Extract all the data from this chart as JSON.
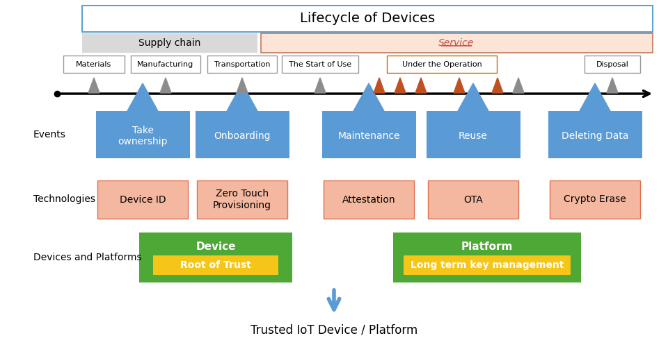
{
  "title": "Lifecycle of Devices",
  "title_box_edge": "#5ba3d0",
  "supply_chain_label": "Supply chain",
  "supply_chain_color": "#d9d9d9",
  "service_label": "Service",
  "service_color": "#fce4d6",
  "service_border_color": "#c0785a",
  "service_text_color": "#c0504d",
  "event_color": "#5b9bd5",
  "event_text_color": "#ffffff",
  "tech_color": "#f4b8a0",
  "tech_border_color": "#e07050",
  "device_color": "#4ea836",
  "device_inner_color": "#f5c518",
  "platform_color": "#4ea836",
  "platform_inner_color": "#f5c518",
  "arrow_down_color": "#5b9bd5",
  "bg_color": "#ffffff"
}
